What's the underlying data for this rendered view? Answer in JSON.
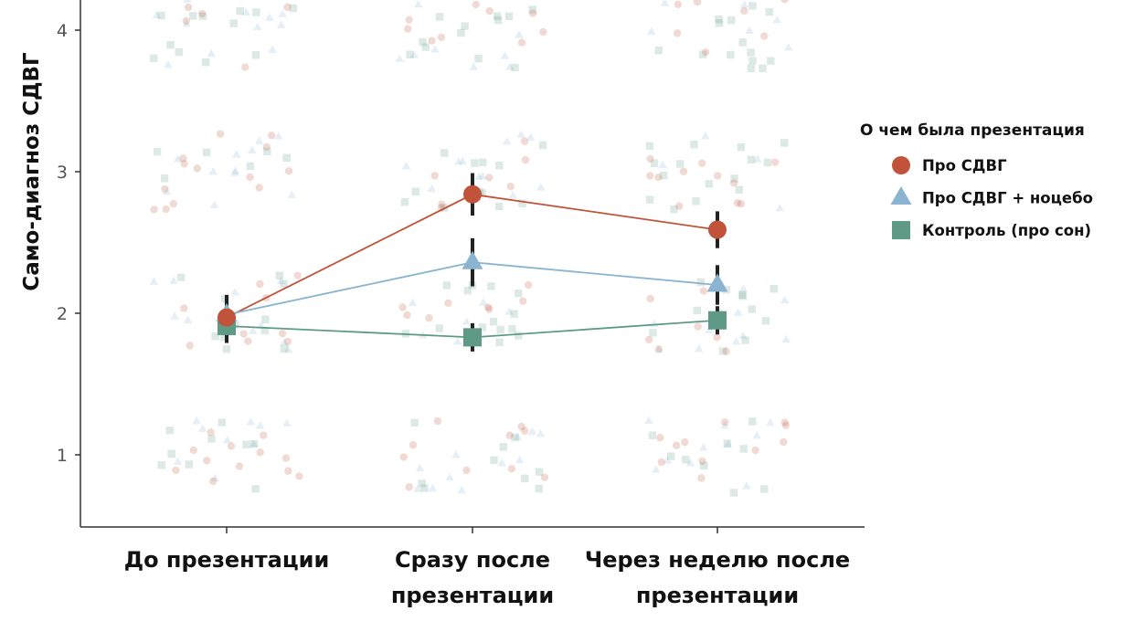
{
  "chart_data": {
    "type": "line",
    "title": "",
    "xlabel": "",
    "ylabel": "Само-диагноз СДВГ",
    "categories": [
      "До презентации",
      "Сразу после|презентации",
      "Через неделю после|презентации"
    ],
    "yticks": [
      1,
      2,
      3,
      4
    ],
    "ylim": [
      0.49,
      4.21
    ],
    "grid": false,
    "legend": {
      "title": "О чем была презентация",
      "placement": "right"
    },
    "series": [
      {
        "name": "Про СДВГ",
        "marker": "circle",
        "color": "#c0533a",
        "values": [
          1.97,
          2.84,
          2.59
        ],
        "err": [
          0.14,
          0.15,
          0.13
        ]
      },
      {
        "name": "Про СДВГ + ноцебо",
        "marker": "triangle",
        "color": "#8ab4d0",
        "values": [
          1.99,
          2.36,
          2.2
        ],
        "err": [
          0.14,
          0.17,
          0.14
        ]
      },
      {
        "name": "Контроль (про сон)",
        "marker": "square",
        "color": "#5f9a87",
        "values": [
          1.91,
          1.83,
          1.95
        ],
        "err": [
          0.12,
          0.1,
          0.1
        ]
      }
    ],
    "raw_point_levels": [
      1,
      2,
      3,
      4
    ]
  }
}
